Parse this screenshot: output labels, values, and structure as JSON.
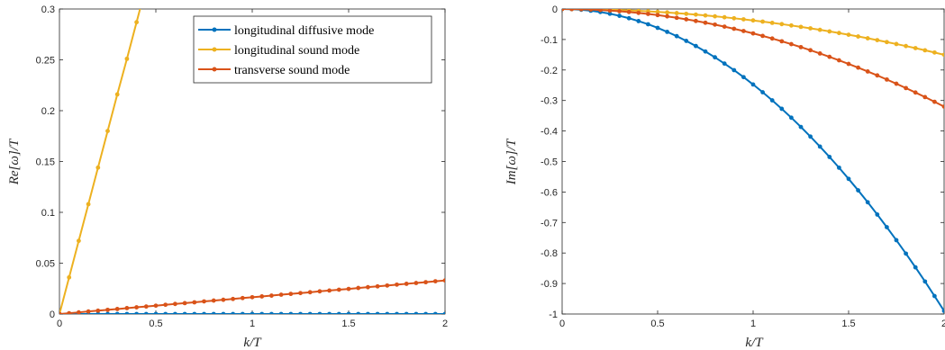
{
  "chart_data": [
    {
      "type": "line",
      "xlabel": "k/T",
      "ylabel": "Re[ω]/T",
      "xlim": [
        0,
        2
      ],
      "ylim": [
        0,
        0.3
      ],
      "xticks": [
        "0",
        "0.5",
        "1",
        "1.5",
        "2"
      ],
      "yticks": [
        "0",
        "0.05",
        "0.1",
        "0.15",
        "0.2",
        "0.25",
        "0.3"
      ],
      "legend": "top-right",
      "series": [
        {
          "name": "longitudinal diffusive mode",
          "color": "#0072BD",
          "x": [
            0,
            0.05,
            0.1,
            0.15,
            0.2,
            0.25,
            0.3,
            0.35,
            0.4,
            0.45,
            0.5,
            0.55,
            0.6,
            0.65,
            0.7,
            0.75,
            0.8,
            0.85,
            0.9,
            0.95,
            1,
            1.05,
            1.1,
            1.15,
            1.2,
            1.25,
            1.3,
            1.35,
            1.4,
            1.45,
            1.5,
            1.55,
            1.6,
            1.65,
            1.7,
            1.75,
            1.8,
            1.85,
            1.9,
            1.95,
            2
          ],
          "y": [
            0,
            0,
            0,
            0,
            0,
            0,
            0,
            0,
            0,
            0,
            0,
            0,
            0,
            0,
            0,
            0,
            0,
            0,
            0,
            0,
            0,
            0,
            0,
            0,
            0,
            0,
            0,
            0,
            0,
            0,
            0,
            0,
            0,
            0,
            0,
            0,
            0,
            0,
            0,
            0,
            0
          ]
        },
        {
          "name": "longitudinal sound mode",
          "color": "#EDB120",
          "x": [
            0,
            0.05,
            0.1,
            0.15,
            0.2,
            0.25,
            0.3,
            0.35,
            0.4,
            0.45
          ],
          "y": [
            0,
            0.036,
            0.072,
            0.108,
            0.144,
            0.18,
            0.216,
            0.251,
            0.287,
            0.323
          ]
        },
        {
          "name": "transverse sound mode",
          "color": "#D95319",
          "x": [
            0,
            0.05,
            0.1,
            0.15,
            0.2,
            0.25,
            0.3,
            0.35,
            0.4,
            0.45,
            0.5,
            0.55,
            0.6,
            0.65,
            0.7,
            0.75,
            0.8,
            0.85,
            0.9,
            0.95,
            1,
            1.05,
            1.1,
            1.15,
            1.2,
            1.25,
            1.3,
            1.35,
            1.4,
            1.45,
            1.5,
            1.55,
            1.6,
            1.65,
            1.7,
            1.75,
            1.8,
            1.85,
            1.9,
            1.95,
            2
          ],
          "y": [
            0,
            0.0008,
            0.0016,
            0.0025,
            0.0033,
            0.0041,
            0.0049,
            0.0058,
            0.0066,
            0.0074,
            0.0082,
            0.0091,
            0.0099,
            0.0107,
            0.0115,
            0.0124,
            0.0132,
            0.014,
            0.0148,
            0.0157,
            0.0165,
            0.0173,
            0.0181,
            0.019,
            0.0198,
            0.0206,
            0.0214,
            0.0223,
            0.0231,
            0.0239,
            0.0247,
            0.0256,
            0.0264,
            0.0272,
            0.028,
            0.0289,
            0.0297,
            0.0305,
            0.0313,
            0.0322,
            0.033
          ]
        }
      ]
    },
    {
      "type": "line",
      "xlabel": "k/T",
      "ylabel": "Im[ω]/T",
      "xlim": [
        0,
        2
      ],
      "ylim": [
        -1,
        0
      ],
      "xticks": [
        "0",
        "0.5",
        "1",
        "1.5",
        "2"
      ],
      "yticks": [
        "0",
        "-0.1",
        "-0.2",
        "-0.3",
        "-0.4",
        "-0.5",
        "-0.6",
        "-0.7",
        "-0.8",
        "-0.9",
        "-1"
      ],
      "series": [
        {
          "color": "#0072BD",
          "x": [
            0,
            0.05,
            0.1,
            0.15,
            0.2,
            0.25,
            0.3,
            0.35,
            0.4,
            0.45,
            0.5,
            0.55,
            0.6,
            0.65,
            0.7,
            0.75,
            0.8,
            0.85,
            0.9,
            0.95,
            1,
            1.05,
            1.1,
            1.15,
            1.2,
            1.25,
            1.3,
            1.35,
            1.4,
            1.45,
            1.5,
            1.55,
            1.6,
            1.65,
            1.7,
            1.75,
            1.8,
            1.85,
            1.9,
            1.95,
            2
          ],
          "y": [
            0,
            -0.0006,
            -0.0025,
            -0.0056,
            -0.0099,
            -0.0155,
            -0.0223,
            -0.0303,
            -0.0396,
            -0.0501,
            -0.0619,
            -0.0749,
            -0.0891,
            -0.1046,
            -0.1213,
            -0.1393,
            -0.1584,
            -0.1789,
            -0.2005,
            -0.2234,
            -0.2475,
            -0.2729,
            -0.2995,
            -0.3273,
            -0.3564,
            -0.3867,
            -0.4183,
            -0.451,
            -0.4851,
            -0.5203,
            -0.5569,
            -0.5946,
            -0.6336,
            -0.6738,
            -0.7153,
            -0.758,
            -0.8019,
            -0.847,
            -0.8934,
            -0.9411,
            -0.99
          ]
        },
        {
          "color": "#EDB120",
          "x": [
            0,
            0.05,
            0.1,
            0.15,
            0.2,
            0.25,
            0.3,
            0.35,
            0.4,
            0.45,
            0.5,
            0.55,
            0.6,
            0.65,
            0.7,
            0.75,
            0.8,
            0.85,
            0.9,
            0.95,
            1,
            1.05,
            1.1,
            1.15,
            1.2,
            1.25,
            1.3,
            1.35,
            1.4,
            1.45,
            1.5,
            1.55,
            1.6,
            1.65,
            1.7,
            1.75,
            1.8,
            1.85,
            1.9,
            1.95,
            2
          ],
          "y": [
            0,
            -0.0001,
            -0.0004,
            -0.0009,
            -0.0015,
            -0.0023,
            -0.0034,
            -0.0046,
            -0.006,
            -0.0076,
            -0.0094,
            -0.0113,
            -0.0135,
            -0.0158,
            -0.0184,
            -0.0211,
            -0.024,
            -0.0271,
            -0.0304,
            -0.0339,
            -0.0375,
            -0.0413,
            -0.0454,
            -0.0496,
            -0.054,
            -0.0586,
            -0.0634,
            -0.0683,
            -0.0735,
            -0.0788,
            -0.0844,
            -0.0901,
            -0.096,
            -0.1021,
            -0.1084,
            -0.1148,
            -0.1215,
            -0.1283,
            -0.1354,
            -0.1426,
            -0.15
          ]
        },
        {
          "color": "#D95319",
          "x": [
            0,
            0.05,
            0.1,
            0.15,
            0.2,
            0.25,
            0.3,
            0.35,
            0.4,
            0.45,
            0.5,
            0.55,
            0.6,
            0.65,
            0.7,
            0.75,
            0.8,
            0.85,
            0.9,
            0.95,
            1,
            1.05,
            1.1,
            1.15,
            1.2,
            1.25,
            1.3,
            1.35,
            1.4,
            1.45,
            1.5,
            1.55,
            1.6,
            1.65,
            1.7,
            1.75,
            1.8,
            1.85,
            1.9,
            1.95,
            2
          ],
          "y": [
            0,
            -0.0002,
            -0.0008,
            -0.0018,
            -0.0032,
            -0.005,
            -0.0072,
            -0.0098,
            -0.0128,
            -0.0162,
            -0.02,
            -0.0242,
            -0.0288,
            -0.0338,
            -0.0392,
            -0.045,
            -0.0512,
            -0.0578,
            -0.0648,
            -0.0722,
            -0.08,
            -0.0882,
            -0.0968,
            -0.1058,
            -0.1152,
            -0.125,
            -0.1352,
            -0.1458,
            -0.1568,
            -0.1682,
            -0.18,
            -0.1922,
            -0.2048,
            -0.2178,
            -0.2312,
            -0.245,
            -0.2592,
            -0.2738,
            -0.2888,
            -0.3042,
            -0.32
          ]
        }
      ]
    }
  ]
}
